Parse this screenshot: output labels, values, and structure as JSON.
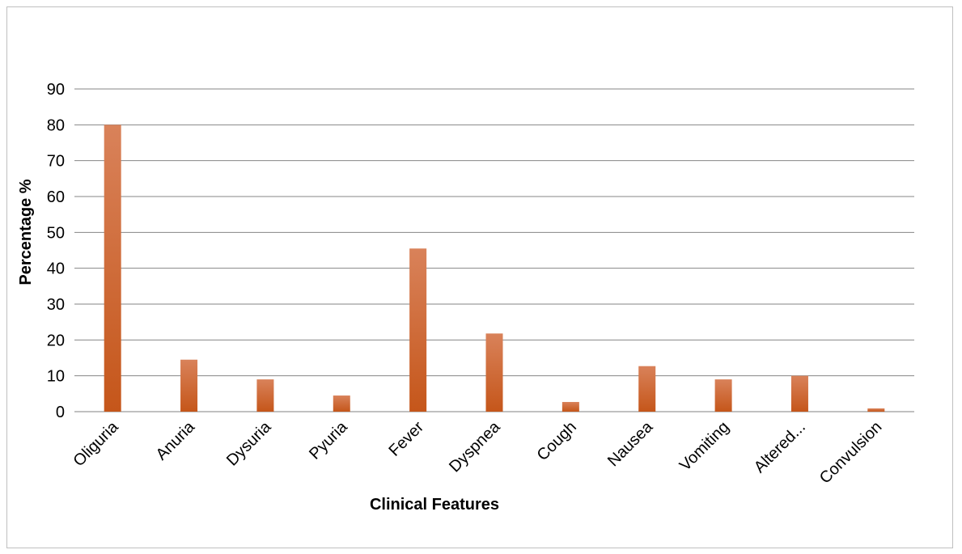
{
  "chart_data": {
    "type": "bar",
    "title": "",
    "xlabel": "Clinical Features",
    "ylabel": "Percentage %",
    "categories": [
      "Oliguria",
      "Anuria",
      "Dysuria",
      "Pyuria",
      "Fever",
      "Dyspnea",
      "Cough",
      "Nausea",
      "Vomiting",
      "Altered...",
      "Convulsion"
    ],
    "values": [
      80,
      14.5,
      9,
      4.5,
      45.5,
      21.8,
      2.7,
      12.7,
      9,
      10,
      0.9
    ],
    "ylim": [
      0,
      90
    ],
    "yticks": [
      0,
      10,
      20,
      30,
      40,
      50,
      60,
      70,
      80,
      90
    ],
    "grid": true,
    "legend": "none",
    "bar_color": "#c5561a",
    "bar_color_light": "#d9825a"
  }
}
